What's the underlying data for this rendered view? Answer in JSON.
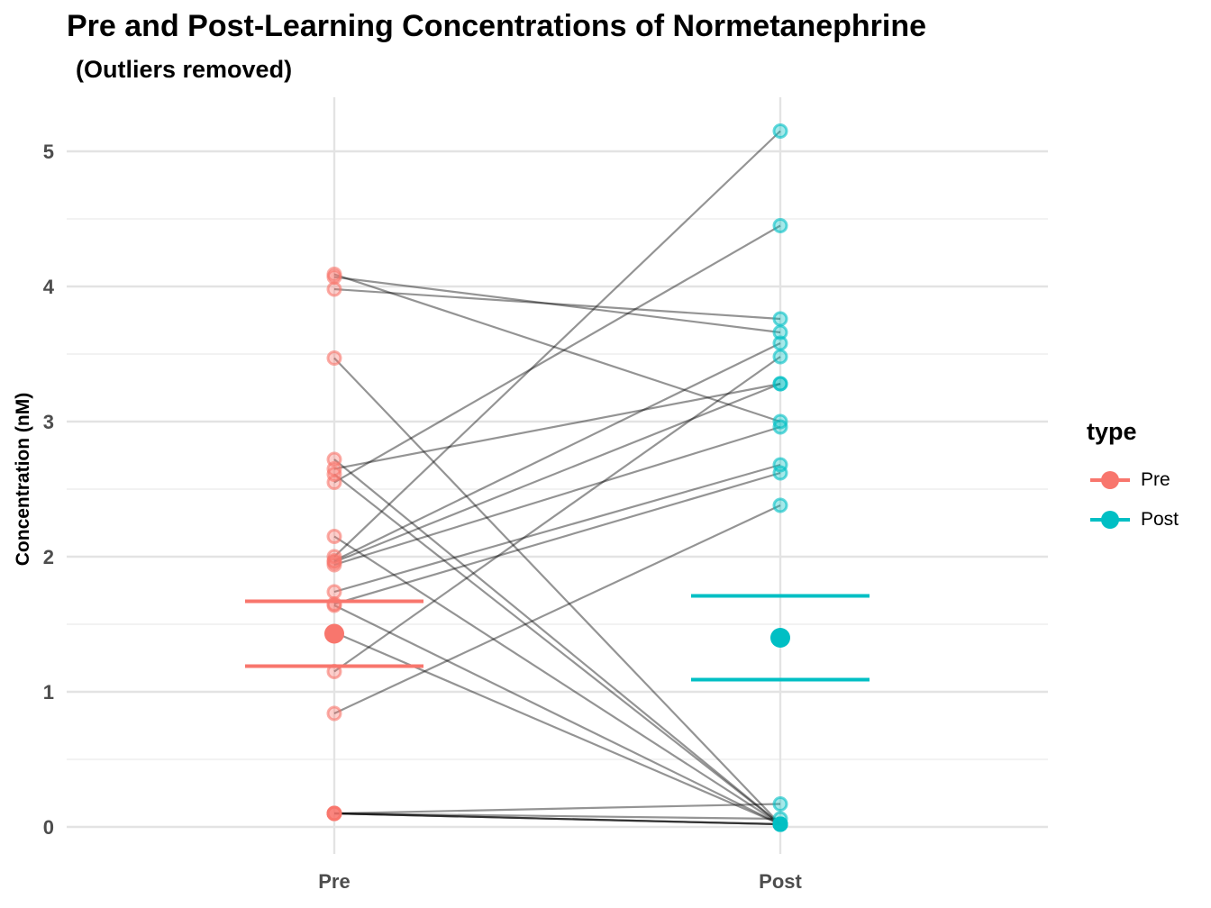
{
  "chart_data": {
    "type": "scatter",
    "title": "Pre and Post-Learning Concentrations of Normetanephrine",
    "subtitle": "(Outliers removed)",
    "xlabel": "",
    "ylabel": "Concentration (nM)",
    "categories": [
      "Pre",
      "Post"
    ],
    "ylim": [
      -0.1,
      5.4
    ],
    "yticks": [
      0,
      1,
      2,
      3,
      4,
      5
    ],
    "grid": true,
    "legend_title": "type",
    "legend_position": "right",
    "series": [
      {
        "name": "Pre",
        "color": "#F8766D"
      },
      {
        "name": "Post",
        "color": "#00BFC4"
      }
    ],
    "pairs": [
      [
        4.09,
        3.0
      ],
      [
        4.07,
        3.66
      ],
      [
        3.98,
        3.76
      ],
      [
        3.47,
        0.02
      ],
      [
        2.72,
        0.02
      ],
      [
        2.65,
        3.28
      ],
      [
        2.61,
        0.02
      ],
      [
        2.55,
        4.45
      ],
      [
        2.15,
        0.02
      ],
      [
        2.0,
        5.15
      ],
      [
        1.97,
        3.58
      ],
      [
        1.96,
        3.28
      ],
      [
        1.94,
        2.96
      ],
      [
        1.74,
        2.68
      ],
      [
        1.65,
        2.62
      ],
      [
        1.64,
        0.02
      ],
      [
        1.44,
        0.02
      ],
      [
        1.15,
        3.48
      ],
      [
        0.84,
        2.38
      ],
      [
        0.1,
        0.17
      ],
      [
        0.1,
        0.06
      ],
      [
        0.1,
        0.02
      ],
      [
        0.1,
        0.02
      ],
      [
        0.1,
        0.02
      ]
    ],
    "summary": [
      {
        "name": "Pre",
        "mean": 1.43,
        "upper": 1.67,
        "lower": 1.19
      },
      {
        "name": "Post",
        "mean": 1.4,
        "upper": 1.71,
        "lower": 1.09
      }
    ]
  }
}
